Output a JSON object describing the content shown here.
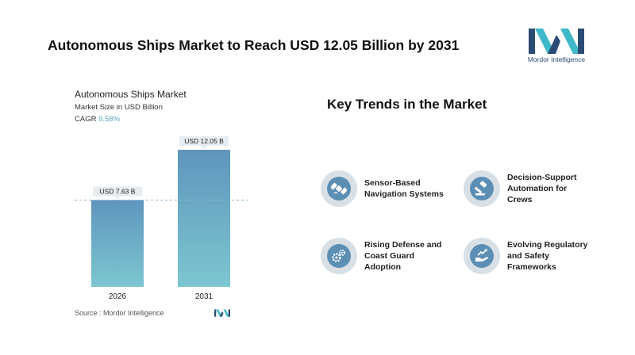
{
  "header": {
    "title": "Autonomous Ships Market to Reach USD 12.05 Billion by 2031",
    "logo_text": "Mordor Intelligence"
  },
  "chart_panel": {
    "title": "Autonomous Ships Market",
    "subtitle": "Market Size in USD Billion",
    "cagr_label": "CAGR",
    "cagr_value": "9.58%",
    "source": "Source :  Mordor Intelligence"
  },
  "chart_data": {
    "type": "bar",
    "title": "Autonomous Ships Market",
    "ylabel": "Market Size in USD Billion",
    "categories": [
      "2026",
      "2031"
    ],
    "values": [
      7.63,
      12.05
    ],
    "data_labels": [
      "USD 7.63 B",
      "USD 12.05 B"
    ],
    "ylim": [
      0,
      12.05
    ],
    "grid": false,
    "reference_line": "dashed at 2026 value",
    "colors": {
      "bar_top": "#5f95bd",
      "bar_bottom": "#7cc6d0",
      "label_bg": "#e6ecef"
    }
  },
  "trends": {
    "title": "Key Trends in the Market",
    "items": [
      {
        "label_lines": [
          "Sensor-Based",
          "Navigation Systems"
        ],
        "icon": "satellite-icon"
      },
      {
        "label_lines": [
          "Decision-Support",
          "Automation for",
          "Crews"
        ],
        "icon": "gavel-icon"
      },
      {
        "label_lines": [
          "Rising Defense and",
          "Coast Guard",
          "Adoption"
        ],
        "icon": "gears-icon"
      },
      {
        "label_lines": [
          "Evolving Regulatory",
          "and Safety",
          "Frameworks"
        ],
        "icon": "hand-growth-icon"
      }
    ]
  },
  "colors": {
    "brand_dark": "#2a4c74",
    "brand_light": "#3fb8c9",
    "icon_circle": "#5d8fb5",
    "icon_ring": "#d8e0e6"
  }
}
